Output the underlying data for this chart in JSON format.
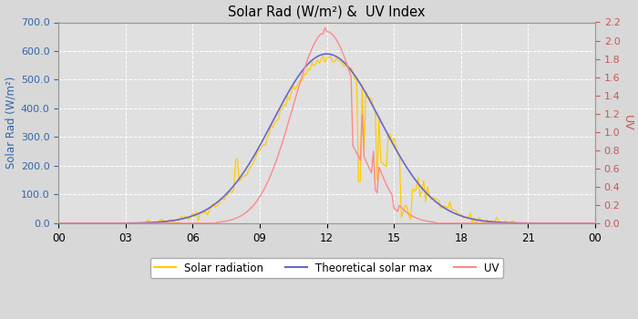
{
  "title": "Solar Rad (W/m²) &  UV Index",
  "ylabel_left": "Solar Rad (W/m²)",
  "ylabel_right": "UV",
  "xlim": [
    0,
    24
  ],
  "ylim_left": [
    0,
    700
  ],
  "ylim_right": [
    0,
    2.2
  ],
  "xtick_labels": [
    "00",
    "03",
    "06",
    "09",
    "12",
    "15",
    "18",
    "21",
    "00"
  ],
  "xtick_positions": [
    0,
    3,
    6,
    9,
    12,
    15,
    18,
    21,
    24
  ],
  "ytick_left": [
    0.0,
    100.0,
    200.0,
    300.0,
    400.0,
    500.0,
    600.0,
    700.0
  ],
  "ytick_right": [
    0.0,
    0.2,
    0.4,
    0.6,
    0.8,
    1.0,
    1.2,
    1.4,
    1.6,
    1.8,
    2.0,
    2.2
  ],
  "bg_color": "#d8d8d8",
  "plot_bg_color": "#e0e0e0",
  "grid_color": "#ffffff",
  "solar_rad_color": "#ffcc00",
  "theoretical_color": "#6666cc",
  "uv_color": "#ff8888",
  "legend_labels": [
    "Solar radiation",
    "Theoretical solar max",
    "UV"
  ],
  "solar_peak": 12.0,
  "solar_max_amplitude": 590,
  "solar_sigma": 2.4,
  "uv_peak": 11.9,
  "uv_sigma": 1.5,
  "uv_scale": 315,
  "uv_max_raw": 2.1,
  "uv_spike_x": 11.85,
  "uv_spike_val": 2.14
}
